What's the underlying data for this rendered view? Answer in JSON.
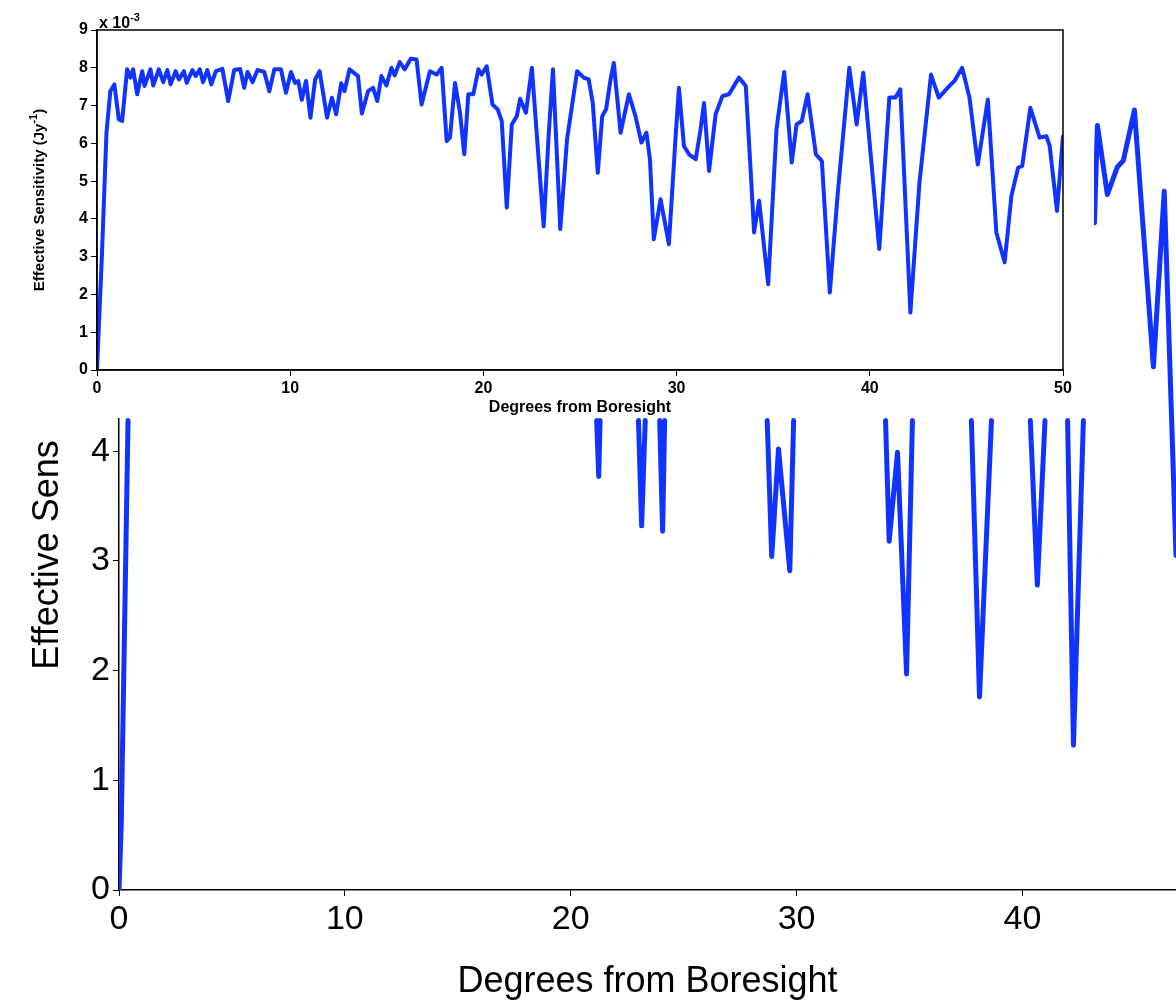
{
  "chart_data": [
    {
      "type": "line",
      "xlabel": "Degrees from Boresight",
      "ylabel": "Effective Sensitivity (Jy$^{-1}$)",
      "annotations": [
        "x 10$^{-3}$"
      ],
      "xlim": [
        0,
        50
      ],
      "ylim": [
        0,
        9
      ],
      "xticks": [
        0,
        10,
        20,
        30,
        40,
        50
      ],
      "yticks": [
        0,
        1,
        2,
        3,
        4,
        5,
        6,
        7,
        8,
        9
      ],
      "marker": "none",
      "series": [
        {
          "color": "#1133ff",
          "x": [
            0,
            0.26,
            0.49,
            0.69,
            0.9,
            1.13,
            1.3,
            1.56,
            1.73,
            1.87,
            2.08,
            2.34,
            2.46,
            2.77,
            2.91,
            3.2,
            3.43,
            3.64,
            3.81,
            4.07,
            4.24,
            4.5,
            4.64,
            4.94,
            5.11,
            5.32,
            5.49,
            5.71,
            5.92,
            6.15,
            6.49,
            6.79,
            7.1,
            7.41,
            7.62,
            7.79,
            8.05,
            8.31,
            8.66,
            8.92,
            9.18,
            9.52,
            9.78,
            10.04,
            10.25,
            10.42,
            10.6,
            10.82,
            11.05,
            11.29,
            11.52,
            11.91,
            12.16,
            12.38,
            12.64,
            12.81,
            13.07,
            13.51,
            13.71,
            14.03,
            14.29,
            14.51,
            14.72,
            14.98,
            15.24,
            15.41,
            15.67,
            15.93,
            16.24,
            16.54,
            16.8,
            17.23,
            17.58,
            17.84,
            18.1,
            18.27,
            18.53,
            18.79,
            19.01,
            19.22,
            19.48,
            19.74,
            19.91,
            20.17,
            20.47,
            20.74,
            20.95,
            21.21,
            21.47,
            21.73,
            21.9,
            22.2,
            22.51,
            22.77,
            23.12,
            23.38,
            23.6,
            23.98,
            24.33,
            24.85,
            25.19,
            25.45,
            25.66,
            25.92,
            26.15,
            26.35,
            26.58,
            26.75,
            27.1,
            27.53,
            27.87,
            28.18,
            28.44,
            28.62,
            28.82,
            29.17,
            29.6,
            29.95,
            30.12,
            30.38,
            30.64,
            30.99,
            31.24,
            31.42,
            31.68,
            32.02,
            32.37,
            32.71,
            33.23,
            33.58,
            33.84,
            34.01,
            34.27,
            34.74,
            35.17,
            35.57,
            35.96,
            36.21,
            36.48,
            36.78,
            37.21,
            37.52,
            37.93,
            38.33,
            38.94,
            39.32,
            39.66,
            40.49,
            41.01,
            41.32,
            41.58,
            42.1,
            42.57,
            43.17,
            43.57,
            44.12,
            44.38,
            44.78,
            45.16,
            45.59,
            46.11,
            46.55,
            46.98,
            47.33,
            47.68,
            47.89,
            48.31,
            48.79,
            49.14,
            49.31,
            49.69,
            50
          ],
          "values": [
            0,
            3.11,
            6.28,
            7.38,
            7.56,
            6.63,
            6.59,
            7.96,
            7.74,
            7.96,
            7.3,
            7.91,
            7.52,
            7.96,
            7.53,
            7.96,
            7.62,
            7.94,
            7.56,
            7.91,
            7.69,
            7.91,
            7.6,
            7.94,
            7.78,
            7.96,
            7.62,
            7.94,
            7.56,
            7.91,
            7.97,
            7.12,
            7.94,
            7.97,
            7.47,
            7.89,
            7.62,
            7.94,
            7.89,
            7.38,
            7.96,
            7.96,
            7.34,
            7.89,
            7.6,
            7.65,
            7.15,
            7.65,
            6.68,
            7.69,
            7.91,
            6.68,
            7.21,
            6.77,
            7.59,
            7.38,
            7.96,
            7.78,
            6.79,
            7.38,
            7.47,
            7.12,
            7.78,
            7.53,
            8.0,
            7.8,
            8.15,
            7.96,
            8.24,
            8.22,
            7.03,
            7.91,
            7.82,
            8.0,
            6.06,
            6.15,
            7.6,
            6.81,
            5.71,
            7.3,
            7.3,
            7.96,
            7.82,
            8.04,
            7.03,
            6.9,
            6.59,
            4.3,
            6.5,
            6.72,
            7.18,
            6.81,
            8.0,
            6.19,
            3.8,
            6.24,
            7.96,
            3.73,
            6.11,
            7.91,
            7.74,
            7.69,
            7.07,
            5.22,
            6.72,
            6.9,
            7.69,
            8.13,
            6.28,
            7.3,
            6.72,
            6.02,
            6.28,
            5.58,
            3.46,
            4.52,
            3.33,
            6.19,
            7.47,
            5.93,
            5.71,
            5.58,
            6.37,
            7.07,
            5.27,
            6.77,
            7.25,
            7.3,
            7.74,
            7.52,
            5.22,
            3.64,
            4.48,
            2.27,
            6.37,
            7.89,
            5.49,
            6.5,
            6.59,
            7.3,
            5.71,
            5.53,
            2.05,
            4.61,
            8.0,
            6.5,
            7.87,
            3.2,
            7.21,
            7.21,
            7.43,
            1.52,
            4.96,
            7.82,
            7.21,
            7.52,
            7.65,
            8.0,
            7.21,
            5.44,
            7.16,
            3.64,
            2.85,
            4.61,
            5.36,
            5.4,
            6.94,
            6.15,
            6.19,
            5.93,
            4.21,
            6.19
          ]
        }
      ]
    },
    {
      "type": "line",
      "xlabel": "Degrees from Boresight",
      "ylabel": "Effective Sens",
      "xlim": [
        0,
        46.8
      ],
      "ylim": [
        0,
        7.9
      ],
      "xticks": [
        0,
        10,
        20,
        30,
        40
      ],
      "yticks": [
        0,
        1,
        2,
        3,
        4
      ],
      "marker": "none",
      "series": [
        {
          "color": "#1133ff",
          "x": [
            0,
            0.1,
            0.4,
            10,
            21.15,
            21.24,
            21.3,
            22,
            23.0,
            23.14,
            23.3,
            23.6,
            23.94,
            24.07,
            24.16,
            26,
            28.7,
            28.9,
            29.2,
            29.7,
            29.87,
            32,
            33.94,
            34.1,
            34.47,
            34.87,
            35.13,
            36,
            37.74,
            38.1,
            38.63,
            39.5,
            40.35,
            40.66,
            41.0,
            41.5,
            42.0,
            42.26,
            42.7,
            43,
            43.19,
            43.32,
            43.76,
            44.2,
            44.47,
            44.96,
            45.8,
            46.28,
            46.8
          ],
          "values": [
            0,
            0.6,
            4.28,
            null,
            4.28,
            3.77,
            4.28,
            null,
            4.28,
            3.32,
            4.28,
            null,
            4.28,
            3.27,
            4.28,
            null,
            4.28,
            3.04,
            4.02,
            2.91,
            4.28,
            null,
            4.28,
            3.18,
            3.99,
            1.97,
            4.28,
            null,
            4.28,
            1.76,
            4.28,
            null,
            4.28,
            2.78,
            4.28,
            null,
            4.28,
            1.32,
            4.28,
            null,
            6.08,
            6.97,
            6.34,
            6.59,
            6.65,
            7.11,
            4.77,
            6.37,
            3.05
          ]
        }
      ]
    }
  ]
}
